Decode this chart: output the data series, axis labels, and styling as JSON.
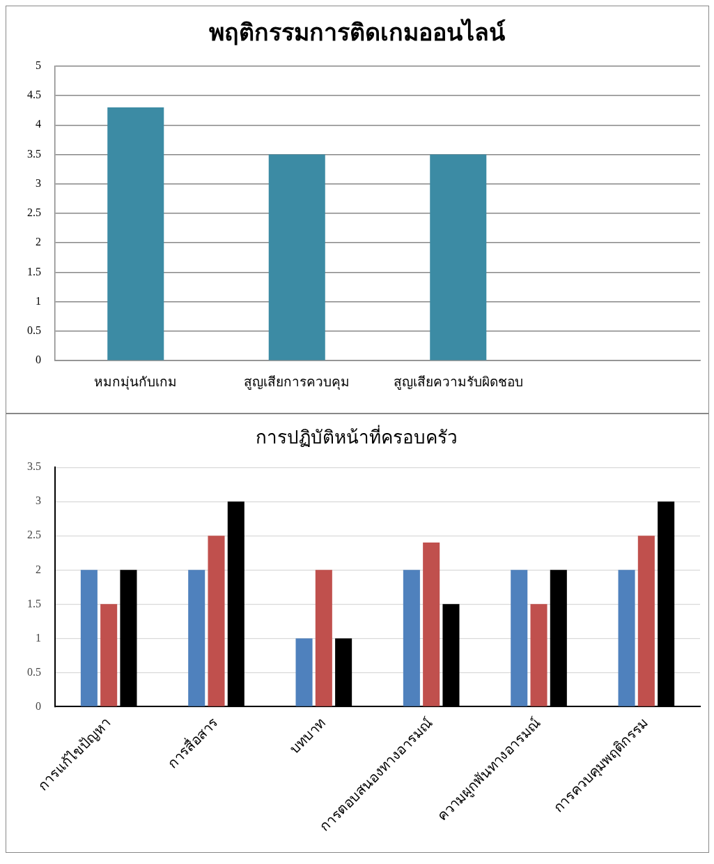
{
  "chart_data": [
    {
      "type": "bar",
      "title": "พฤติกรรมการติดเกมออนไลน์",
      "categories": [
        "หมกมุ่นกับเกม",
        "สูญเสียการควบคุม",
        "สูญเสียความรับผิดชอบ",
        null
      ],
      "values": [
        4.3,
        3.5,
        3.5,
        null
      ],
      "color": "#3c8ba4",
      "ylim": [
        0,
        5
      ],
      "yticks": [
        0,
        0.5,
        1,
        1.5,
        2,
        2.5,
        3,
        3.5,
        4,
        4.5,
        5
      ],
      "grid": "y",
      "legend": false
    },
    {
      "type": "bar",
      "title": "การปฏิบัติหน้าที่ครอบครัว",
      "categories": [
        "การแก้ไขปัญหา",
        "การสื่อสาร",
        "บทบาท",
        "การตอบสนองทางอารมณ์",
        "ความผูกพันทางอารมณ์",
        "การควบคุมพฤติกรรม"
      ],
      "series": [
        {
          "color": "#4f81bd",
          "values": [
            2,
            2,
            1,
            2,
            2,
            2
          ]
        },
        {
          "color": "#c0504d",
          "values": [
            1.5,
            2.5,
            2,
            2.4,
            1.5,
            2.5
          ]
        },
        {
          "color": "#000000",
          "values": [
            2,
            3,
            1,
            1.5,
            2,
            3
          ]
        }
      ],
      "ylim": [
        0,
        3.5
      ],
      "yticks": [
        0,
        0.5,
        1,
        1.5,
        2,
        2.5,
        3,
        3.5
      ],
      "grid": "y",
      "legend": false
    }
  ]
}
